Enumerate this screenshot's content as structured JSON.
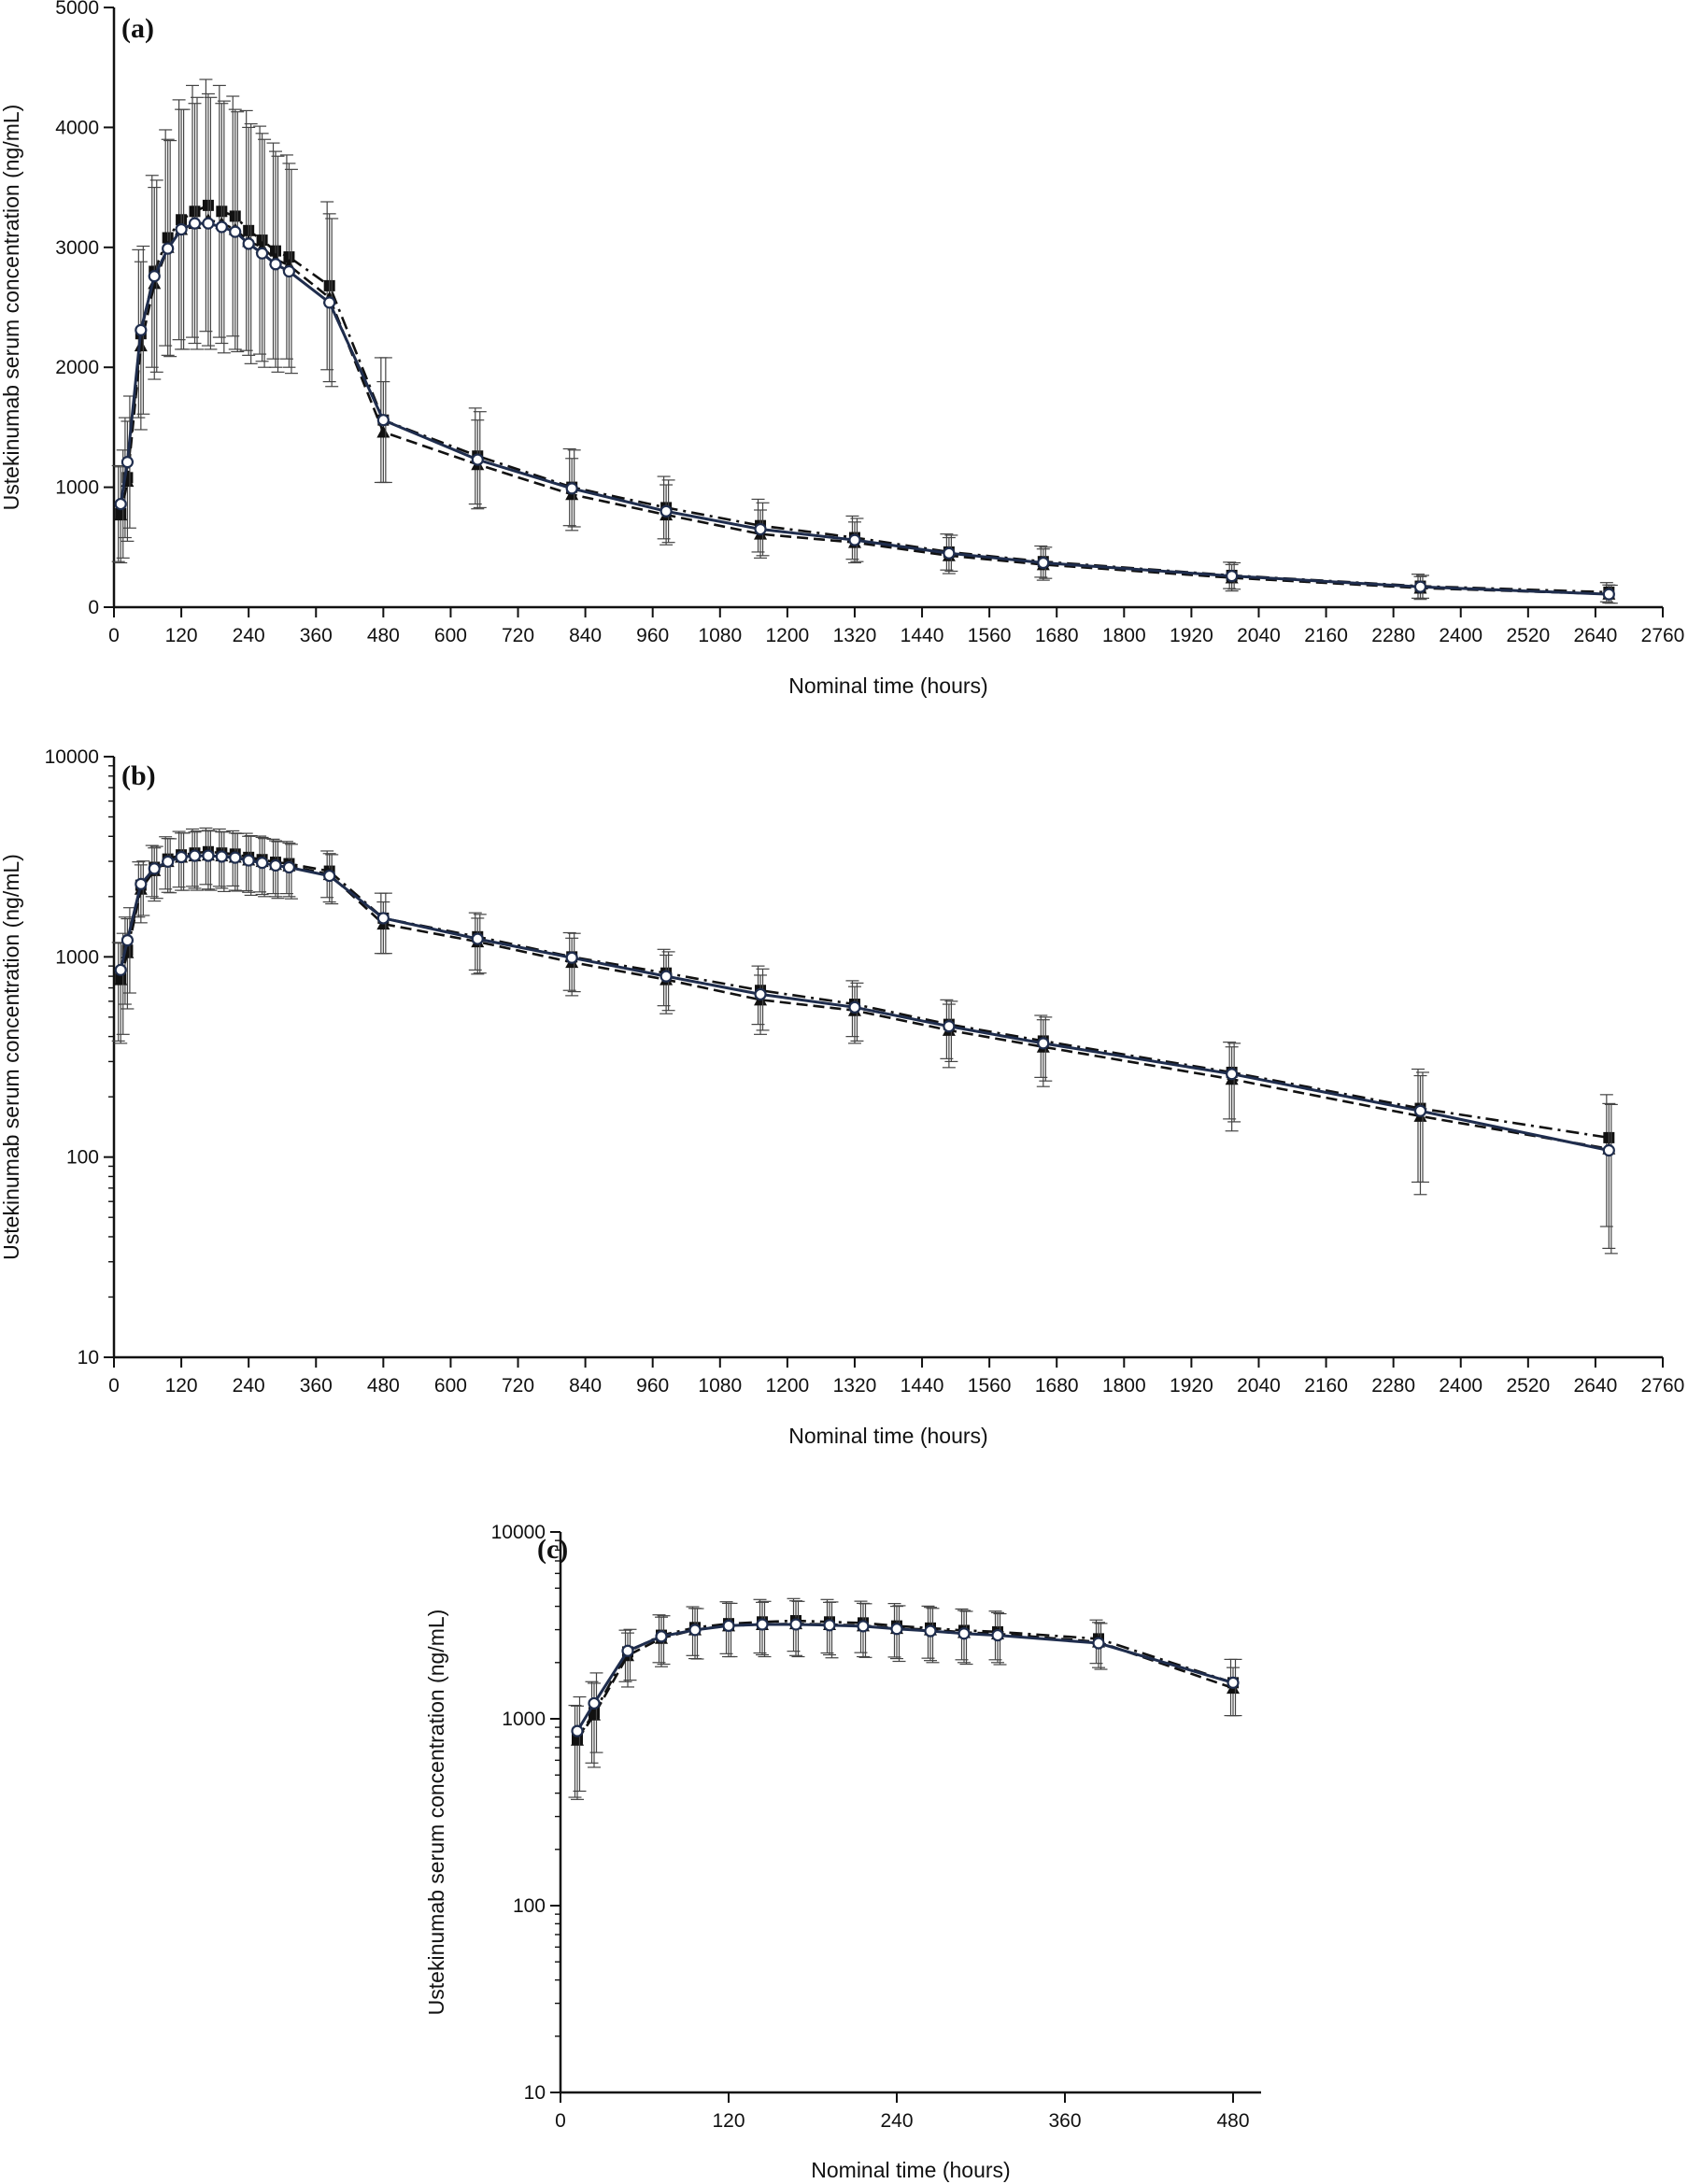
{
  "chart_data": [
    {
      "panel": "(a)",
      "type": "line",
      "xlabel": "Nominal time (hours)",
      "ylabel": "Ustekinumab  serum concentration (ng/mL)",
      "xscale": "linear",
      "yscale": "linear",
      "xlim": [
        0,
        2760
      ],
      "ylim": [
        0,
        5000
      ],
      "xticks": [
        0,
        120,
        240,
        360,
        480,
        600,
        720,
        840,
        960,
        1080,
        1200,
        1320,
        1440,
        1560,
        1680,
        1800,
        1920,
        2040,
        2160,
        2280,
        2400,
        2520,
        2640,
        2760
      ],
      "yticks": [
        0,
        1000,
        2000,
        3000,
        4000,
        5000
      ],
      "grid": false,
      "legend": "none"
    },
    {
      "panel": "(b)",
      "type": "line",
      "xlabel": "Nominal time (hours)",
      "ylabel": "Ustekinumab  serum concentration (ng/mL)",
      "xscale": "linear",
      "yscale": "log",
      "xlim": [
        0,
        2760
      ],
      "ylim": [
        10,
        10000
      ],
      "xticks": [
        0,
        120,
        240,
        360,
        480,
        600,
        720,
        840,
        960,
        1080,
        1200,
        1320,
        1440,
        1560,
        1680,
        1800,
        1920,
        2040,
        2160,
        2280,
        2400,
        2520,
        2640,
        2760
      ],
      "yticks": [
        10,
        100,
        1000,
        10000
      ],
      "grid": false,
      "legend": "none"
    },
    {
      "panel": "(c)",
      "type": "line",
      "xlabel": "Nominal time (hours)",
      "ylabel": "Ustekinumab  serum concentration (ng/mL)",
      "xscale": "linear",
      "yscale": "log",
      "xlim": [
        0,
        500
      ],
      "ylim": [
        10,
        10000
      ],
      "xticks": [
        0,
        120,
        240,
        360,
        480
      ],
      "yticks": [
        10,
        100,
        1000,
        10000
      ],
      "grid": false,
      "legend": "none"
    }
  ],
  "series": [
    {
      "marker": "square-filled",
      "line": "dashdot",
      "color": "#111111",
      "x": [
        12,
        24,
        48,
        72,
        96,
        120,
        144,
        168,
        192,
        216,
        240,
        264,
        288,
        312,
        384,
        480,
        648,
        816,
        984,
        1152,
        1320,
        1488,
        1656,
        1992,
        2328,
        2664
      ],
      "y": [
        780,
        1080,
        2280,
        2800,
        3080,
        3230,
        3300,
        3350,
        3300,
        3260,
        3140,
        3060,
        2970,
        2920,
        2680,
        1560,
        1260,
        1000,
        830,
        680,
        580,
        460,
        380,
        265,
        175,
        125
      ],
      "err": [
        400,
        500,
        700,
        800,
        900,
        1000,
        1050,
        1050,
        1050,
        1000,
        1000,
        950,
        900,
        850,
        700,
        520,
        400,
        320,
        260,
        220,
        180,
        150,
        130,
        110,
        100,
        80
      ]
    },
    {
      "marker": "triangle-filled",
      "line": "dashed",
      "color": "#111111",
      "x": [
        12,
        24,
        48,
        72,
        96,
        120,
        144,
        168,
        192,
        216,
        240,
        264,
        288,
        312,
        384,
        480,
        648,
        816,
        984,
        1152,
        1320,
        1488,
        1656,
        1992,
        2328,
        2664
      ],
      "y": [
        770,
        1050,
        2180,
        2700,
        3000,
        3150,
        3200,
        3230,
        3200,
        3150,
        3050,
        3000,
        2900,
        2850,
        2580,
        1460,
        1190,
        940,
        770,
        610,
        540,
        430,
        355,
        245,
        160,
        110
      ],
      "err": [
        400,
        500,
        700,
        800,
        900,
        1000,
        1000,
        1050,
        1000,
        1000,
        950,
        950,
        900,
        850,
        700,
        420,
        370,
        300,
        250,
        200,
        170,
        150,
        130,
        110,
        95,
        75
      ]
    },
    {
      "marker": "circle-open",
      "line": "solid",
      "color": "#1f2d4d",
      "x": [
        12,
        24,
        48,
        72,
        96,
        120,
        144,
        168,
        192,
        216,
        240,
        264,
        288,
        312,
        384,
        480,
        648,
        816,
        984,
        1152,
        1320,
        1488,
        1656,
        1992,
        2328,
        2664
      ],
      "y": [
        860,
        1210,
        2310,
        2760,
        2990,
        3150,
        3200,
        3200,
        3170,
        3130,
        3030,
        2950,
        2860,
        2800,
        2540,
        1560,
        1230,
        990,
        800,
        650,
        560,
        450,
        370,
        260,
        170,
        108
      ],
      "err": [
        450,
        550,
        700,
        800,
        900,
        1000,
        1050,
        1050,
        1050,
        1000,
        1000,
        950,
        900,
        850,
        700,
        520,
        400,
        320,
        260,
        220,
        180,
        150,
        130,
        110,
        95,
        75
      ]
    }
  ]
}
